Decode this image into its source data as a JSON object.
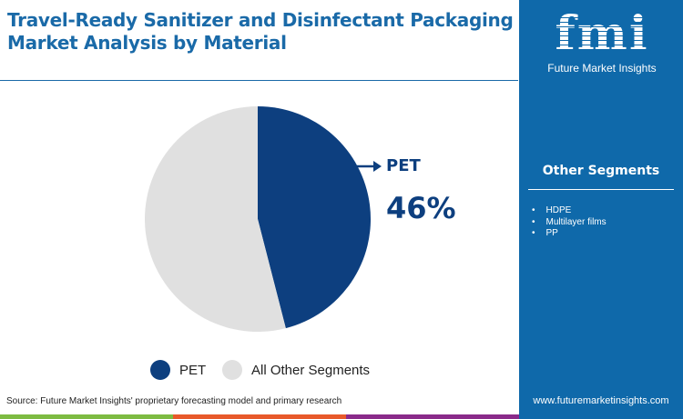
{
  "title": "Travel-Ready Sanitizer and Disinfectant Packaging Market Analysis by Material",
  "logo": {
    "letters": "fmi",
    "name": "Future Market Insights"
  },
  "other_segments": {
    "title": "Other Segments",
    "items": [
      "HDPE",
      "Multilayer films",
      "PP"
    ]
  },
  "source": "Source: Future Market Insights' proprietary forecasting model and primary research",
  "website": "www.futuremarketinsights.com",
  "colors": {
    "pet": "#0d3f7f",
    "other": "#e0e0e0",
    "accent": "#0f69aa"
  },
  "chart_data": {
    "type": "pie",
    "slices": [
      {
        "name": "PET",
        "value": 46,
        "color": "#0d3f7f"
      },
      {
        "name": "All Other Segments",
        "value": 54,
        "color": "#e0e0e0"
      }
    ],
    "callout": {
      "label": "PET",
      "value": "46%"
    },
    "legend": [
      "PET",
      "All Other Segments"
    ],
    "legend_position": "bottom"
  }
}
